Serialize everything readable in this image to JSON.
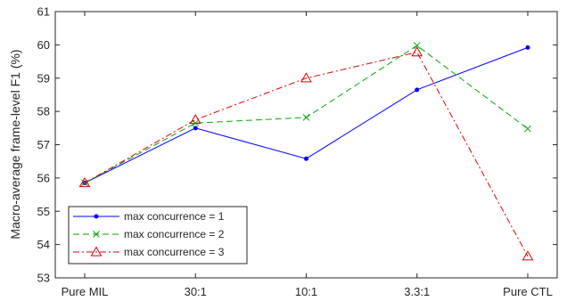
{
  "chart_data": {
    "type": "line",
    "title": "",
    "xlabel": "",
    "ylabel": "Macro-average frame-level F1 (%)",
    "categories": [
      "Pure MIL",
      "30:1",
      "10:1",
      "3.3:1",
      "Pure CTL"
    ],
    "ylim": [
      53,
      61
    ],
    "yticks": [
      53,
      54,
      55,
      56,
      57,
      58,
      59,
      60,
      61
    ],
    "grid": false,
    "legend_position": "bottom-left",
    "series": [
      {
        "name": "max concurrence = 1",
        "values": [
          55.85,
          57.5,
          56.58,
          58.65,
          59.92
        ],
        "color": "#0000ff",
        "line_style": "solid",
        "marker": "dot"
      },
      {
        "name": "max concurrence = 2",
        "values": [
          55.85,
          57.65,
          57.82,
          59.98,
          57.48
        ],
        "color": "#00aa00",
        "line_style": "dashed",
        "marker": "x"
      },
      {
        "name": "max concurrence = 3",
        "values": [
          55.85,
          57.75,
          59.0,
          59.78,
          53.65
        ],
        "color": "#e00000",
        "line_style": "dashdot",
        "marker": "triangle"
      }
    ]
  }
}
